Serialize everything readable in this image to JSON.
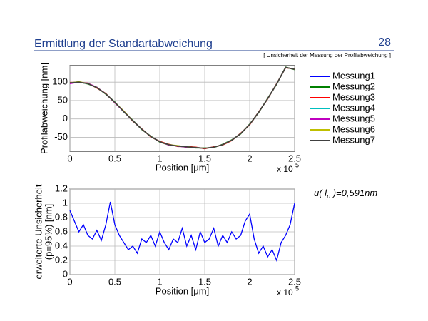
{
  "header": {
    "title": "Ermittlung der Standartabweichung",
    "page": "28",
    "subtitle": "[ Unsicherheit der Messung der Profilabweichung ]"
  },
  "chart_data": [
    {
      "type": "line",
      "ylabel": "Profilabweichung [nm]",
      "xlabel": "Position [μm]",
      "x_multiplier": "x 10",
      "x_exponent": "5",
      "xlim": [
        0,
        2.5
      ],
      "xticks": [
        0,
        0.5,
        1,
        1.5,
        2,
        2.5
      ],
      "ylim": [
        -88,
        145
      ],
      "yticks": [
        100,
        50,
        0,
        -50
      ],
      "grid": true,
      "legend": "right",
      "x": [
        0,
        0.1,
        0.2,
        0.3,
        0.4,
        0.5,
        0.6,
        0.7,
        0.8,
        0.9,
        1,
        1.1,
        1.2,
        1.3,
        1.4,
        1.5,
        1.6,
        1.7,
        1.8,
        1.9,
        2,
        2.1,
        2.2,
        2.3,
        2.4,
        2.5
      ],
      "series": [
        {
          "name": "Messung1",
          "color": "#0000ff",
          "values": [
            98,
            100,
            96,
            85,
            68,
            45,
            20,
            -5,
            -28,
            -48,
            -62,
            -70,
            -74,
            -76,
            -78,
            -80,
            -77,
            -70,
            -58,
            -40,
            -15,
            18,
            55,
            95,
            140,
            135
          ]
        },
        {
          "name": "Messung2",
          "color": "#008000",
          "values": [
            97,
            101,
            95,
            86,
            67,
            46,
            19,
            -4,
            -29,
            -47,
            -63,
            -71,
            -73,
            -77,
            -79,
            -79,
            -78,
            -69,
            -57,
            -41,
            -14,
            17,
            56,
            94,
            141,
            134
          ]
        },
        {
          "name": "Messung3",
          "color": "#ff0000",
          "values": [
            99,
            99,
            97,
            84,
            69,
            44,
            21,
            -6,
            -27,
            -49,
            -61,
            -69,
            -75,
            -75,
            -77,
            -81,
            -76,
            -71,
            -59,
            -39,
            -16,
            19,
            54,
            96,
            139,
            136
          ]
        },
        {
          "name": "Messung4",
          "color": "#00bfbf",
          "values": [
            98,
            100,
            96,
            85,
            68,
            45,
            20,
            -5,
            -28,
            -48,
            -62,
            -70,
            -74,
            -76,
            -78,
            -80,
            -77,
            -70,
            -58,
            -40,
            -15,
            18,
            55,
            95,
            140,
            135
          ]
        },
        {
          "name": "Messung5",
          "color": "#bf00bf",
          "values": [
            96,
            100,
            97,
            86,
            68,
            44,
            20,
            -5,
            -28,
            -48,
            -62,
            -71,
            -74,
            -77,
            -78,
            -80,
            -77,
            -70,
            -58,
            -40,
            -15,
            18,
            55,
            95,
            140,
            135
          ]
        },
        {
          "name": "Messung6",
          "color": "#bfbf00",
          "values": [
            98,
            101,
            96,
            85,
            68,
            45,
            21,
            -5,
            -28,
            -48,
            -62,
            -70,
            -73,
            -76,
            -78,
            -80,
            -77,
            -70,
            -58,
            -40,
            -15,
            18,
            55,
            95,
            140,
            135
          ]
        },
        {
          "name": "Messung7",
          "color": "#404040",
          "values": [
            98,
            100,
            96,
            85,
            68,
            45,
            20,
            -5,
            -28,
            -48,
            -62,
            -70,
            -74,
            -76,
            -78,
            -80,
            -77,
            -70,
            -58,
            -40,
            -15,
            18,
            55,
            95,
            140,
            135
          ]
        }
      ]
    },
    {
      "type": "line",
      "ylabel": [
        "erweiterte Unsicherheit",
        "(p=95%) [nm]"
      ],
      "xlabel": "Position [μm]",
      "x_multiplier": "x 10",
      "x_exponent": "5",
      "annotation": [
        "u( l",
        "p",
        " )=0,591nm"
      ],
      "xlim": [
        0,
        2.5
      ],
      "xticks": [
        0,
        0.5,
        1,
        1.5,
        2,
        2.5
      ],
      "ylim": [
        0,
        1.2
      ],
      "yticks": [
        0,
        0.2,
        0.4,
        0.6,
        0.8,
        1,
        1.2
      ],
      "grid": true,
      "x": [
        0,
        0.05,
        0.1,
        0.15,
        0.2,
        0.25,
        0.3,
        0.35,
        0.4,
        0.45,
        0.5,
        0.55,
        0.6,
        0.65,
        0.7,
        0.75,
        0.8,
        0.85,
        0.9,
        0.95,
        1,
        1.05,
        1.1,
        1.15,
        1.2,
        1.25,
        1.3,
        1.35,
        1.4,
        1.45,
        1.5,
        1.55,
        1.6,
        1.65,
        1.7,
        1.75,
        1.8,
        1.85,
        1.9,
        1.95,
        2,
        2.05,
        2.1,
        2.15,
        2.2,
        2.25,
        2.3,
        2.35,
        2.4,
        2.45,
        2.5
      ],
      "series": [
        {
          "color": "#0000ff",
          "values": [
            0.9,
            0.75,
            0.6,
            0.7,
            0.55,
            0.5,
            0.62,
            0.48,
            0.7,
            1.02,
            0.7,
            0.55,
            0.45,
            0.35,
            0.4,
            0.3,
            0.5,
            0.45,
            0.55,
            0.4,
            0.6,
            0.45,
            0.35,
            0.5,
            0.45,
            0.65,
            0.4,
            0.55,
            0.35,
            0.6,
            0.45,
            0.5,
            0.65,
            0.4,
            0.55,
            0.45,
            0.6,
            0.5,
            0.55,
            0.75,
            0.85,
            0.5,
            0.3,
            0.4,
            0.25,
            0.35,
            0.2,
            0.45,
            0.55,
            0.7,
            1.0
          ]
        }
      ]
    }
  ]
}
